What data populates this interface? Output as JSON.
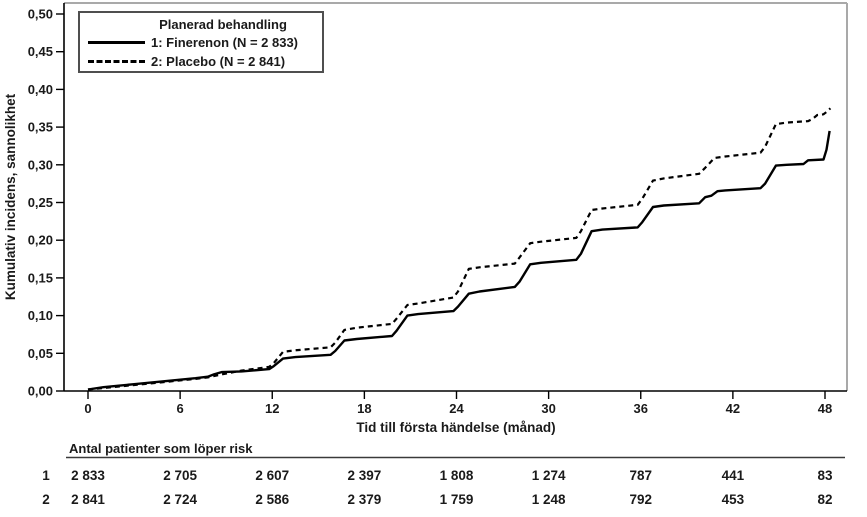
{
  "figure": {
    "y_axis_label": "Kumulativ incidens, sannolikhet",
    "x_axis_label": "Tid till första händelse (månad)",
    "legend": {
      "title": "Planerad behandling",
      "items": [
        {
          "label": "1: Finerenon (N = 2 833)",
          "line": "solid"
        },
        {
          "label": "2: Placebo (N = 2 841)",
          "line": "dashed"
        }
      ]
    },
    "risk_table": {
      "title": "Antal patienter som löper risk",
      "rows": [
        {
          "label": "1",
          "values": [
            "2 833",
            "2 705",
            "2 607",
            "2 397",
            "1 808",
            "1 274",
            "787",
            "441",
            "83"
          ]
        },
        {
          "label": "2",
          "values": [
            "2 841",
            "2 724",
            "2 586",
            "2 379",
            "1 759",
            "1 248",
            "792",
            "453",
            "82"
          ]
        }
      ]
    }
  },
  "chart_data": {
    "type": "line",
    "title": "",
    "xlabel": "Tid till första händelse (månad)",
    "ylabel": "Kumulativ incidens, sannolikhet",
    "xlim": [
      0,
      48
    ],
    "ylim": [
      0,
      0.5
    ],
    "x_ticks": [
      0,
      6,
      12,
      18,
      24,
      30,
      36,
      42,
      48
    ],
    "y_ticks": [
      0,
      0.05,
      0.1,
      0.15,
      0.2,
      0.25,
      0.3,
      0.35,
      0.4,
      0.45,
      0.5
    ],
    "grid": false,
    "legend_position": "top-left",
    "decimal_separator": ",",
    "series": [
      {
        "name": "1: Finerenon (N = 2 833)",
        "style": "solid",
        "points": [
          [
            0,
            0.002
          ],
          [
            1,
            0.005
          ],
          [
            2,
            0.007
          ],
          [
            3,
            0.009
          ],
          [
            4,
            0.011
          ],
          [
            5,
            0.013
          ],
          [
            6,
            0.015
          ],
          [
            7,
            0.017
          ],
          [
            7.8,
            0.019
          ],
          [
            8.2,
            0.022
          ],
          [
            8.7,
            0.025
          ],
          [
            10,
            0.026
          ],
          [
            11.8,
            0.029
          ],
          [
            12.1,
            0.033
          ],
          [
            12.7,
            0.043
          ],
          [
            13.5,
            0.045
          ],
          [
            15.8,
            0.048
          ],
          [
            16.1,
            0.053
          ],
          [
            16.7,
            0.067
          ],
          [
            17.5,
            0.069
          ],
          [
            19.8,
            0.073
          ],
          [
            20.1,
            0.08
          ],
          [
            20.8,
            0.1
          ],
          [
            21.5,
            0.102
          ],
          [
            23.8,
            0.106
          ],
          [
            24.1,
            0.112
          ],
          [
            24.8,
            0.129
          ],
          [
            25.5,
            0.132
          ],
          [
            27.8,
            0.138
          ],
          [
            28.1,
            0.145
          ],
          [
            28.8,
            0.168
          ],
          [
            29.5,
            0.17
          ],
          [
            31.8,
            0.174
          ],
          [
            32.1,
            0.182
          ],
          [
            32.8,
            0.212
          ],
          [
            33.5,
            0.214
          ],
          [
            35.8,
            0.217
          ],
          [
            36.1,
            0.224
          ],
          [
            36.8,
            0.244
          ],
          [
            37.5,
            0.246
          ],
          [
            39.8,
            0.249
          ],
          [
            40.2,
            0.257
          ],
          [
            40.6,
            0.259
          ],
          [
            41.0,
            0.265
          ],
          [
            41.5,
            0.266
          ],
          [
            43.8,
            0.269
          ],
          [
            44.1,
            0.275
          ],
          [
            44.8,
            0.299
          ],
          [
            45.5,
            0.3
          ],
          [
            46.6,
            0.301
          ],
          [
            46.9,
            0.306
          ],
          [
            47.9,
            0.307
          ],
          [
            48.1,
            0.32
          ],
          [
            48.3,
            0.345
          ]
        ]
      },
      {
        "name": "2: Placebo (N = 2 841)",
        "style": "dashed",
        "points": [
          [
            0,
            0.002
          ],
          [
            1,
            0.004
          ],
          [
            2,
            0.006
          ],
          [
            3,
            0.008
          ],
          [
            4,
            0.01
          ],
          [
            5,
            0.012
          ],
          [
            6,
            0.014
          ],
          [
            7,
            0.016
          ],
          [
            7.8,
            0.018
          ],
          [
            8.7,
            0.022
          ],
          [
            10,
            0.027
          ],
          [
            11.8,
            0.032
          ],
          [
            12.1,
            0.037
          ],
          [
            12.7,
            0.052
          ],
          [
            13.5,
            0.054
          ],
          [
            15.8,
            0.058
          ],
          [
            16.1,
            0.064
          ],
          [
            16.7,
            0.081
          ],
          [
            17.5,
            0.084
          ],
          [
            19.8,
            0.089
          ],
          [
            20.1,
            0.096
          ],
          [
            20.8,
            0.114
          ],
          [
            21.5,
            0.116
          ],
          [
            23.8,
            0.124
          ],
          [
            24.1,
            0.132
          ],
          [
            24.8,
            0.162
          ],
          [
            25.5,
            0.164
          ],
          [
            27.8,
            0.169
          ],
          [
            28.1,
            0.177
          ],
          [
            28.8,
            0.196
          ],
          [
            29.5,
            0.198
          ],
          [
            31.8,
            0.203
          ],
          [
            32.1,
            0.212
          ],
          [
            32.8,
            0.24
          ],
          [
            33.5,
            0.242
          ],
          [
            35.8,
            0.247
          ],
          [
            36.1,
            0.255
          ],
          [
            36.8,
            0.279
          ],
          [
            37.5,
            0.282
          ],
          [
            39.8,
            0.288
          ],
          [
            40.2,
            0.296
          ],
          [
            40.8,
            0.309
          ],
          [
            41.5,
            0.311
          ],
          [
            43.8,
            0.316
          ],
          [
            44.1,
            0.324
          ],
          [
            44.8,
            0.354
          ],
          [
            45.5,
            0.356
          ],
          [
            46.9,
            0.358
          ],
          [
            47.2,
            0.361
          ],
          [
            47.5,
            0.366
          ],
          [
            47.9,
            0.367
          ],
          [
            48.1,
            0.37
          ],
          [
            48.35,
            0.375
          ]
        ]
      }
    ],
    "risk_table_numbers": [
      [
        2833,
        2705,
        2607,
        2397,
        1808,
        1274,
        787,
        441,
        83
      ],
      [
        2841,
        2724,
        2586,
        2379,
        1759,
        1248,
        792,
        453,
        82
      ]
    ]
  }
}
